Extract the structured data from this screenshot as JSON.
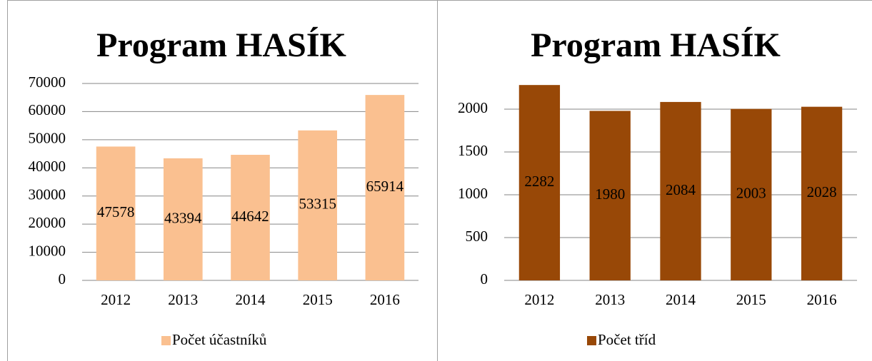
{
  "chart_data": [
    {
      "type": "bar",
      "title": "Program HASÍK",
      "categories": [
        "2012",
        "2013",
        "2014",
        "2015",
        "2016"
      ],
      "series": [
        {
          "name": "Počet účastníků",
          "color": "#fac090",
          "values": [
            47578,
            43394,
            44642,
            53315,
            65914
          ]
        }
      ],
      "ylim": [
        0,
        70000
      ],
      "yticks": [
        0,
        10000,
        20000,
        30000,
        40000,
        50000,
        60000,
        70000
      ],
      "grid": true,
      "legend": "bottom"
    },
    {
      "type": "bar",
      "title": "Program HASÍK",
      "categories": [
        "2012",
        "2013",
        "2014",
        "2015",
        "2016"
      ],
      "series": [
        {
          "name": "Počet tříd",
          "color": "#984807",
          "values": [
            2282,
            1980,
            2084,
            2003,
            2028
          ]
        }
      ],
      "ylim": [
        0,
        2500
      ],
      "yticks": [
        0,
        500,
        1000,
        1500,
        2000
      ],
      "grid": true,
      "legend": "bottom"
    }
  ]
}
